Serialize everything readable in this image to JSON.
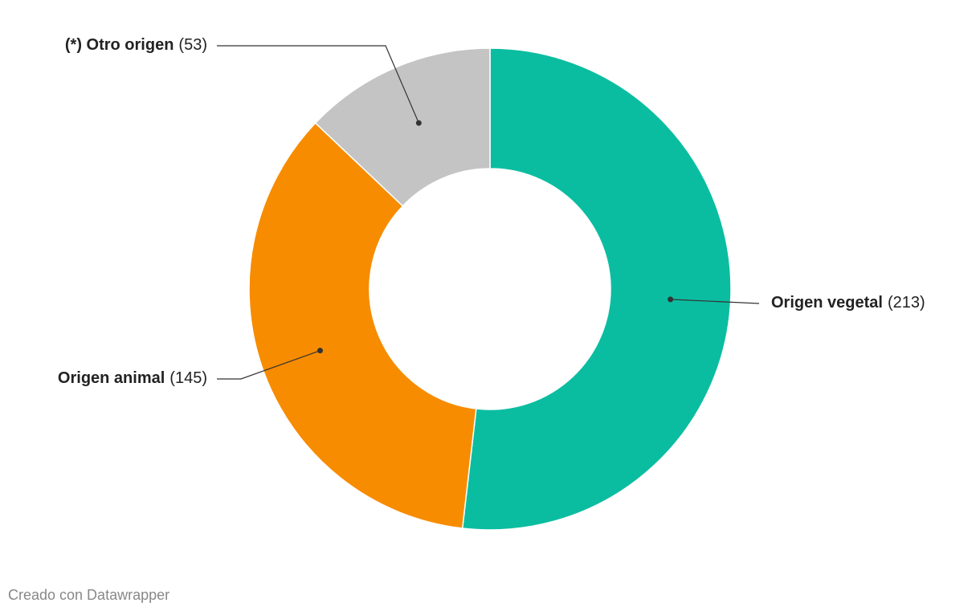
{
  "chart_data": {
    "type": "donut",
    "categories": [
      "Origen vegetal",
      "Origen animal",
      "(*) Otro origen"
    ],
    "values": [
      213,
      145,
      53
    ],
    "value_labels": [
      "(213)",
      "(145)",
      "(53)"
    ],
    "colors": [
      "#0bbda0",
      "#f78c00",
      "#c4c4c4"
    ],
    "footer": "Creado con Datawrapper"
  }
}
